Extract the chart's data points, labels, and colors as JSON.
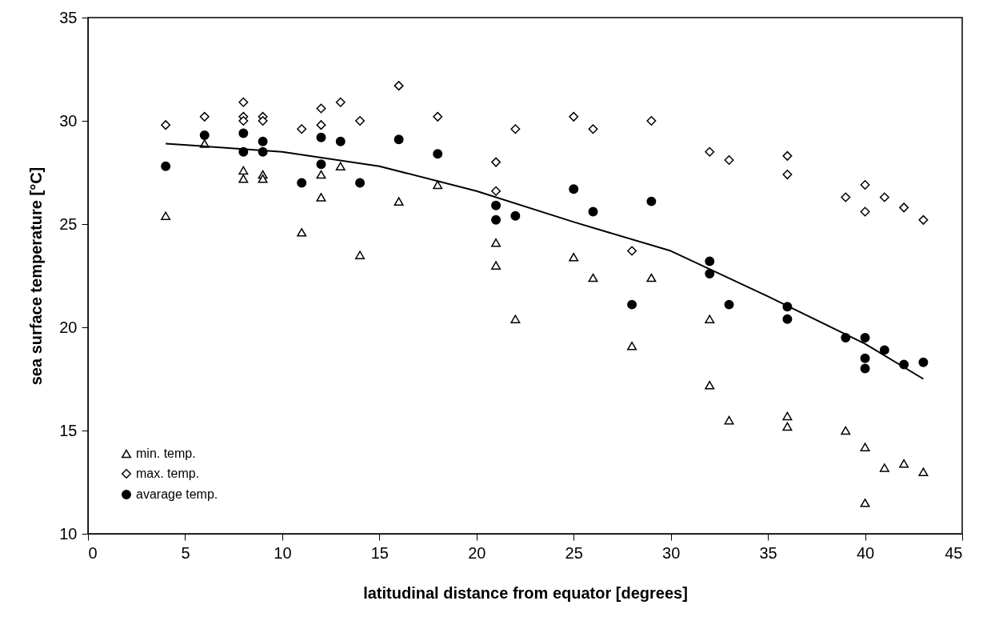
{
  "chart_data": {
    "type": "scatter",
    "xlabel": "latitudinal distance from equator [degrees]",
    "ylabel": "sea surface temperature [°C]",
    "xlim": [
      0,
      45
    ],
    "xticks": [
      0,
      5,
      10,
      15,
      20,
      25,
      30,
      35,
      40,
      45
    ],
    "ylim": [
      10,
      35
    ],
    "yticks": [
      10,
      15,
      20,
      25,
      30,
      35
    ],
    "grid": false,
    "legend": "bottom left",
    "series": [
      {
        "name": "min. temp.",
        "color": "#000000",
        "marker": "triangle",
        "x": [
          4,
          6,
          8,
          8,
          9,
          9,
          11,
          12,
          12,
          13,
          14,
          16,
          18,
          21,
          21,
          22,
          25,
          26,
          28,
          29,
          32,
          32,
          33,
          36,
          36,
          39,
          40,
          40,
          41,
          42,
          43
        ],
        "values": [
          25.4,
          28.9,
          27.6,
          27.2,
          27.4,
          27.2,
          24.6,
          27.4,
          26.3,
          27.8,
          23.5,
          26.1,
          26.9,
          24.1,
          23.0,
          20.4,
          23.4,
          22.4,
          19.1,
          22.4,
          20.4,
          17.2,
          15.5,
          15.7,
          15.2,
          15.0,
          14.2,
          11.5,
          13.2,
          13.4,
          13.0
        ]
      },
      {
        "name": "max. temp.",
        "color": "#000000",
        "marker": "diamond",
        "x": [
          4,
          6,
          8,
          8,
          8,
          9,
          9,
          11,
          12,
          12,
          13,
          14,
          16,
          18,
          21,
          21,
          22,
          25,
          26,
          28,
          29,
          32,
          33,
          36,
          36,
          39,
          40,
          40,
          41,
          42,
          43
        ],
        "values": [
          29.8,
          30.2,
          30.9,
          30.2,
          30.0,
          30.2,
          30.0,
          29.6,
          30.6,
          29.8,
          30.9,
          30.0,
          31.7,
          30.2,
          28.0,
          26.6,
          29.6,
          30.2,
          29.6,
          23.7,
          30.0,
          28.5,
          28.1,
          28.3,
          27.4,
          26.3,
          26.9,
          25.6,
          26.3,
          25.8,
          25.2
        ]
      },
      {
        "name": "avarage temp.",
        "color": "#000000",
        "marker": "circle",
        "x": [
          4,
          6,
          8,
          8,
          9,
          9,
          11,
          12,
          12,
          13,
          14,
          16,
          18,
          21,
          21,
          22,
          25,
          26,
          28,
          29,
          32,
          32,
          33,
          36,
          36,
          39,
          40,
          40,
          40,
          41,
          42,
          43
        ],
        "values": [
          27.8,
          29.3,
          29.4,
          28.5,
          29.0,
          28.5,
          27.0,
          29.2,
          27.9,
          29.0,
          27.0,
          29.1,
          28.4,
          25.9,
          25.2,
          25.4,
          26.7,
          25.6,
          21.1,
          26.1,
          23.2,
          22.6,
          21.1,
          21.0,
          20.4,
          19.5,
          19.5,
          18.5,
          18.0,
          18.9,
          18.2,
          18.3
        ]
      },
      {
        "type": "line",
        "color": "#000000",
        "x": [
          4,
          10,
          15,
          20,
          25,
          30,
          35,
          40,
          43
        ],
        "values": [
          28.9,
          28.5,
          27.8,
          26.6,
          25.1,
          23.7,
          21.5,
          19.2,
          17.5
        ]
      }
    ]
  }
}
